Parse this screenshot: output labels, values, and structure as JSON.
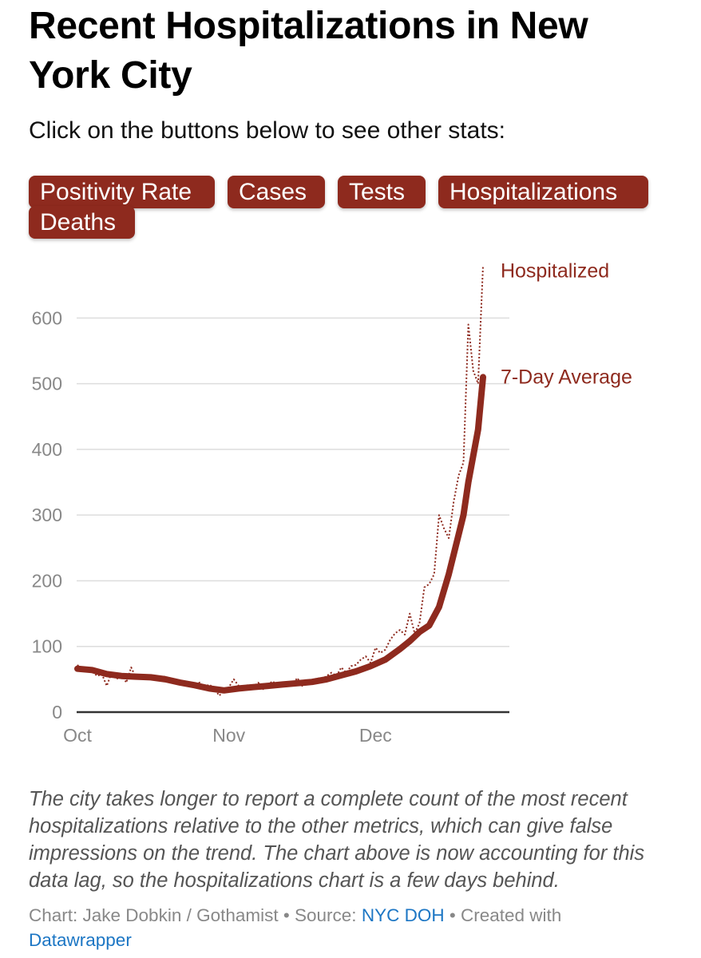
{
  "title": "Recent Hospitalizations in New York City",
  "subtitle": "Click on the buttons below to see other stats:",
  "buttons": [
    "Positivity Rate",
    "Cases",
    "Tests",
    "Hospitalizations",
    "Deaths"
  ],
  "colors": {
    "accent": "#8e2a1e",
    "link": "#1c76c4"
  },
  "chart_data": {
    "type": "line",
    "title": "",
    "xlabel": "",
    "ylabel": "",
    "ylim": [
      0,
      700
    ],
    "y_ticks": [
      0,
      100,
      200,
      300,
      400,
      500,
      600
    ],
    "x_ticks": [
      {
        "label": "Oct",
        "day": 0
      },
      {
        "label": "Nov",
        "day": 31
      },
      {
        "label": "Dec",
        "day": 61
      }
    ],
    "grid": true,
    "series": [
      {
        "name": "Hospitalized",
        "style": "dotted",
        "points": [
          [
            0,
            72
          ],
          [
            1,
            62
          ],
          [
            2,
            68
          ],
          [
            3,
            63
          ],
          [
            4,
            55
          ],
          [
            5,
            58
          ],
          [
            6,
            40
          ],
          [
            7,
            60
          ],
          [
            8,
            50
          ],
          [
            9,
            58
          ],
          [
            10,
            45
          ],
          [
            11,
            68
          ],
          [
            12,
            52
          ],
          [
            13,
            55
          ],
          [
            14,
            50
          ],
          [
            15,
            55
          ],
          [
            16,
            52
          ],
          [
            17,
            50
          ],
          [
            18,
            55
          ],
          [
            19,
            48
          ],
          [
            20,
            50
          ],
          [
            21,
            46
          ],
          [
            22,
            45
          ],
          [
            23,
            42
          ],
          [
            24,
            40
          ],
          [
            25,
            45
          ],
          [
            26,
            38
          ],
          [
            27,
            42
          ],
          [
            28,
            36
          ],
          [
            29,
            25
          ],
          [
            30,
            32
          ],
          [
            31,
            38
          ],
          [
            32,
            50
          ],
          [
            33,
            40
          ],
          [
            34,
            36
          ],
          [
            35,
            42
          ],
          [
            36,
            38
          ],
          [
            37,
            45
          ],
          [
            38,
            35
          ],
          [
            39,
            42
          ],
          [
            40,
            47
          ],
          [
            41,
            38
          ],
          [
            42,
            40
          ],
          [
            43,
            45
          ],
          [
            44,
            42
          ],
          [
            45,
            52
          ],
          [
            46,
            40
          ],
          [
            47,
            48
          ],
          [
            48,
            45
          ],
          [
            49,
            52
          ],
          [
            50,
            50
          ],
          [
            51,
            55
          ],
          [
            52,
            60
          ],
          [
            53,
            55
          ],
          [
            54,
            68
          ],
          [
            55,
            60
          ],
          [
            56,
            70
          ],
          [
            57,
            72
          ],
          [
            58,
            80
          ],
          [
            59,
            85
          ],
          [
            60,
            75
          ],
          [
            61,
            98
          ],
          [
            62,
            90
          ],
          [
            63,
            95
          ],
          [
            64,
            110
          ],
          [
            65,
            120
          ],
          [
            66,
            125
          ],
          [
            67,
            118
          ],
          [
            68,
            150
          ],
          [
            69,
            120
          ],
          [
            70,
            135
          ],
          [
            71,
            190
          ],
          [
            72,
            195
          ],
          [
            73,
            210
          ],
          [
            74,
            300
          ],
          [
            75,
            280
          ],
          [
            76,
            265
          ],
          [
            77,
            320
          ],
          [
            78,
            360
          ],
          [
            79,
            380
          ],
          [
            80,
            590
          ],
          [
            81,
            520
          ],
          [
            82,
            500
          ],
          [
            83,
            680
          ]
        ]
      },
      {
        "name": "7-Day Average",
        "style": "solid",
        "points": [
          [
            0,
            66
          ],
          [
            3,
            64
          ],
          [
            6,
            58
          ],
          [
            9,
            55
          ],
          [
            12,
            54
          ],
          [
            15,
            53
          ],
          [
            18,
            50
          ],
          [
            21,
            45
          ],
          [
            24,
            41
          ],
          [
            27,
            36
          ],
          [
            30,
            33
          ],
          [
            33,
            36
          ],
          [
            36,
            38
          ],
          [
            39,
            40
          ],
          [
            42,
            42
          ],
          [
            45,
            44
          ],
          [
            48,
            46
          ],
          [
            51,
            50
          ],
          [
            54,
            56
          ],
          [
            57,
            62
          ],
          [
            60,
            70
          ],
          [
            63,
            80
          ],
          [
            66,
            96
          ],
          [
            68,
            108
          ],
          [
            70,
            122
          ],
          [
            72,
            132
          ],
          [
            74,
            160
          ],
          [
            76,
            210
          ],
          [
            78,
            270
          ],
          [
            79,
            300
          ],
          [
            80,
            350
          ],
          [
            82,
            430
          ],
          [
            83,
            510
          ]
        ]
      }
    ],
    "labels": {
      "hospitalized": "Hospitalized",
      "average": "7-Day Average"
    }
  },
  "note": "The city takes longer to report a complete count of the most recent hospitalizations relative to the other metrics, which can give false impressions on the trend. The chart above is now accounting for this data lag, so the hospitalizations chart is a few days behind.",
  "credit": {
    "chart": "Chart: Jake Dobkin / Gothamist",
    "sep1": " • Source: ",
    "source": "NYC DOH",
    "sep2": " • Created with",
    "tool": "Datawrapper"
  }
}
